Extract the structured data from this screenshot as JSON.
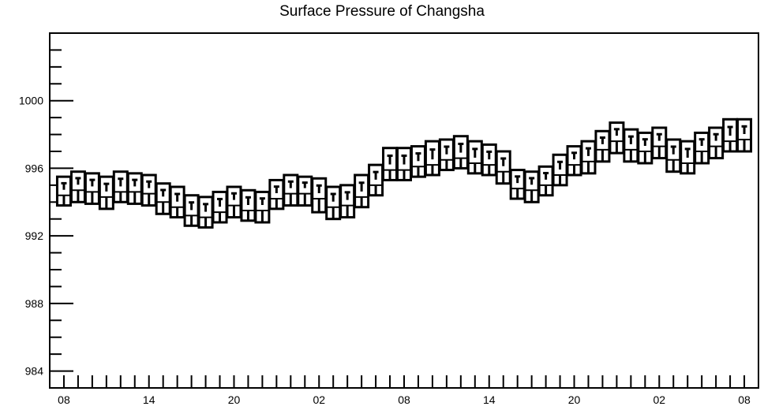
{
  "chart_data": {
    "type": "boxplot",
    "title": "Surface Pressure of Changsha",
    "xlabel": "",
    "ylabel": "",
    "ylim": [
      983,
      1004
    ],
    "yticks": [
      984,
      988,
      992,
      996,
      1000
    ],
    "ytick_labels": [
      "984",
      "988",
      "992",
      "996",
      "1000"
    ],
    "xtick_labels": [
      "08",
      "14",
      "20",
      "02",
      "08",
      "14",
      "20",
      "02",
      "08"
    ],
    "xtick_hours": [
      0,
      6,
      12,
      18,
      24,
      30,
      36,
      42,
      48
    ],
    "x_hours_range": [
      -1,
      49
    ],
    "grid": false,
    "legend": "none",
    "boxes": [
      {
        "hour": 0,
        "low": 993.8,
        "q1": 993.8,
        "median": 994.4,
        "q3": 995.5,
        "high": 995.5
      },
      {
        "hour": 1,
        "low": 994.0,
        "q1": 994.0,
        "median": 994.7,
        "q3": 995.8,
        "high": 995.8
      },
      {
        "hour": 2,
        "low": 993.9,
        "q1": 993.9,
        "median": 994.6,
        "q3": 995.7,
        "high": 995.7
      },
      {
        "hour": 3,
        "low": 993.6,
        "q1": 993.6,
        "median": 994.3,
        "q3": 995.5,
        "high": 995.5
      },
      {
        "hour": 4,
        "low": 994.0,
        "q1": 994.0,
        "median": 994.6,
        "q3": 995.8,
        "high": 995.8
      },
      {
        "hour": 5,
        "low": 993.9,
        "q1": 993.9,
        "median": 994.6,
        "q3": 995.7,
        "high": 995.7
      },
      {
        "hour": 6,
        "low": 993.8,
        "q1": 993.8,
        "median": 994.5,
        "q3": 995.6,
        "high": 995.6
      },
      {
        "hour": 7,
        "low": 993.3,
        "q1": 993.3,
        "median": 994.0,
        "q3": 995.1,
        "high": 995.1
      },
      {
        "hour": 8,
        "low": 993.1,
        "q1": 993.1,
        "median": 993.7,
        "q3": 994.9,
        "high": 994.9
      },
      {
        "hour": 9,
        "low": 992.6,
        "q1": 992.6,
        "median": 993.2,
        "q3": 994.4,
        "high": 994.4
      },
      {
        "hour": 10,
        "low": 992.5,
        "q1": 992.5,
        "median": 993.1,
        "q3": 994.3,
        "high": 994.3
      },
      {
        "hour": 11,
        "low": 992.8,
        "q1": 992.8,
        "median": 993.4,
        "q3": 994.6,
        "high": 994.6
      },
      {
        "hour": 12,
        "low": 993.1,
        "q1": 993.1,
        "median": 993.8,
        "q3": 994.9,
        "high": 994.9
      },
      {
        "hour": 13,
        "low": 992.9,
        "q1": 992.9,
        "median": 993.5,
        "q3": 994.7,
        "high": 994.7
      },
      {
        "hour": 14,
        "low": 992.8,
        "q1": 992.8,
        "median": 993.5,
        "q3": 994.6,
        "high": 994.6
      },
      {
        "hour": 15,
        "low": 993.6,
        "q1": 993.6,
        "median": 994.2,
        "q3": 995.3,
        "high": 995.3
      },
      {
        "hour": 16,
        "low": 993.8,
        "q1": 993.8,
        "median": 994.5,
        "q3": 995.6,
        "high": 995.6
      },
      {
        "hour": 17,
        "low": 993.8,
        "q1": 993.8,
        "median": 994.5,
        "q3": 995.5,
        "high": 995.5
      },
      {
        "hour": 18,
        "low": 993.4,
        "q1": 993.4,
        "median": 994.2,
        "q3": 995.4,
        "high": 995.4
      },
      {
        "hour": 19,
        "low": 993.0,
        "q1": 993.0,
        "median": 993.7,
        "q3": 994.9,
        "high": 994.9
      },
      {
        "hour": 20,
        "low": 993.1,
        "q1": 993.1,
        "median": 993.8,
        "q3": 995.0,
        "high": 995.0
      },
      {
        "hour": 21,
        "low": 993.7,
        "q1": 993.7,
        "median": 994.3,
        "q3": 995.6,
        "high": 995.6
      },
      {
        "hour": 22,
        "low": 994.4,
        "q1": 994.4,
        "median": 995.0,
        "q3": 996.2,
        "high": 996.2
      },
      {
        "hour": 23,
        "low": 995.3,
        "q1": 995.3,
        "median": 995.9,
        "q3": 997.2,
        "high": 997.2
      },
      {
        "hour": 24,
        "low": 995.3,
        "q1": 995.3,
        "median": 995.9,
        "q3": 997.2,
        "high": 997.2
      },
      {
        "hour": 25,
        "low": 995.5,
        "q1": 995.5,
        "median": 996.1,
        "q3": 997.3,
        "high": 997.3
      },
      {
        "hour": 26,
        "low": 995.6,
        "q1": 995.6,
        "median": 996.2,
        "q3": 997.6,
        "high": 997.6
      },
      {
        "hour": 27,
        "low": 995.9,
        "q1": 995.9,
        "median": 996.5,
        "q3": 997.7,
        "high": 997.7
      },
      {
        "hour": 28,
        "low": 996.0,
        "q1": 996.0,
        "median": 996.6,
        "q3": 997.9,
        "high": 997.9
      },
      {
        "hour": 29,
        "low": 995.7,
        "q1": 995.7,
        "median": 996.3,
        "q3": 997.6,
        "high": 997.6
      },
      {
        "hour": 30,
        "low": 995.6,
        "q1": 995.6,
        "median": 996.2,
        "q3": 997.4,
        "high": 997.4
      },
      {
        "hour": 31,
        "low": 995.1,
        "q1": 995.1,
        "median": 995.8,
        "q3": 997.0,
        "high": 997.0
      },
      {
        "hour": 32,
        "low": 994.2,
        "q1": 994.2,
        "median": 994.8,
        "q3": 995.9,
        "high": 995.9
      },
      {
        "hour": 33,
        "low": 994.0,
        "q1": 994.0,
        "median": 994.7,
        "q3": 995.8,
        "high": 995.8
      },
      {
        "hour": 34,
        "low": 994.4,
        "q1": 994.4,
        "median": 995.0,
        "q3": 996.1,
        "high": 996.1
      },
      {
        "hour": 35,
        "low": 995.0,
        "q1": 995.0,
        "median": 995.6,
        "q3": 996.8,
        "high": 996.8
      },
      {
        "hour": 36,
        "low": 995.6,
        "q1": 995.6,
        "median": 996.2,
        "q3": 997.3,
        "high": 997.3
      },
      {
        "hour": 37,
        "low": 995.7,
        "q1": 995.7,
        "median": 996.4,
        "q3": 997.6,
        "high": 997.6
      },
      {
        "hour": 38,
        "low": 996.4,
        "q1": 996.4,
        "median": 997.1,
        "q3": 998.2,
        "high": 998.2
      },
      {
        "hour": 39,
        "low": 996.9,
        "q1": 996.9,
        "median": 997.6,
        "q3": 998.7,
        "high": 998.7
      },
      {
        "hour": 40,
        "low": 996.4,
        "q1": 996.4,
        "median": 997.1,
        "q3": 998.3,
        "high": 998.3
      },
      {
        "hour": 41,
        "low": 996.3,
        "q1": 996.3,
        "median": 997.0,
        "q3": 998.1,
        "high": 998.1
      },
      {
        "hour": 42,
        "low": 996.6,
        "q1": 996.6,
        "median": 997.3,
        "q3": 998.4,
        "high": 998.4
      },
      {
        "hour": 43,
        "low": 995.8,
        "q1": 995.8,
        "median": 996.5,
        "q3": 997.7,
        "high": 997.7
      },
      {
        "hour": 44,
        "low": 995.7,
        "q1": 995.7,
        "median": 996.3,
        "q3": 997.6,
        "high": 997.6
      },
      {
        "hour": 45,
        "low": 996.3,
        "q1": 996.3,
        "median": 997.0,
        "q3": 998.1,
        "high": 998.1
      },
      {
        "hour": 46,
        "low": 996.6,
        "q1": 996.6,
        "median": 997.3,
        "q3": 998.4,
        "high": 998.4
      },
      {
        "hour": 47,
        "low": 997.0,
        "q1": 997.0,
        "median": 997.6,
        "q3": 998.9,
        "high": 998.9
      },
      {
        "hour": 48,
        "low": 997.0,
        "q1": 997.0,
        "median": 997.7,
        "q3": 998.9,
        "high": 998.9
      }
    ],
    "colors": {
      "stroke": "#000000",
      "background": "#ffffff"
    }
  }
}
